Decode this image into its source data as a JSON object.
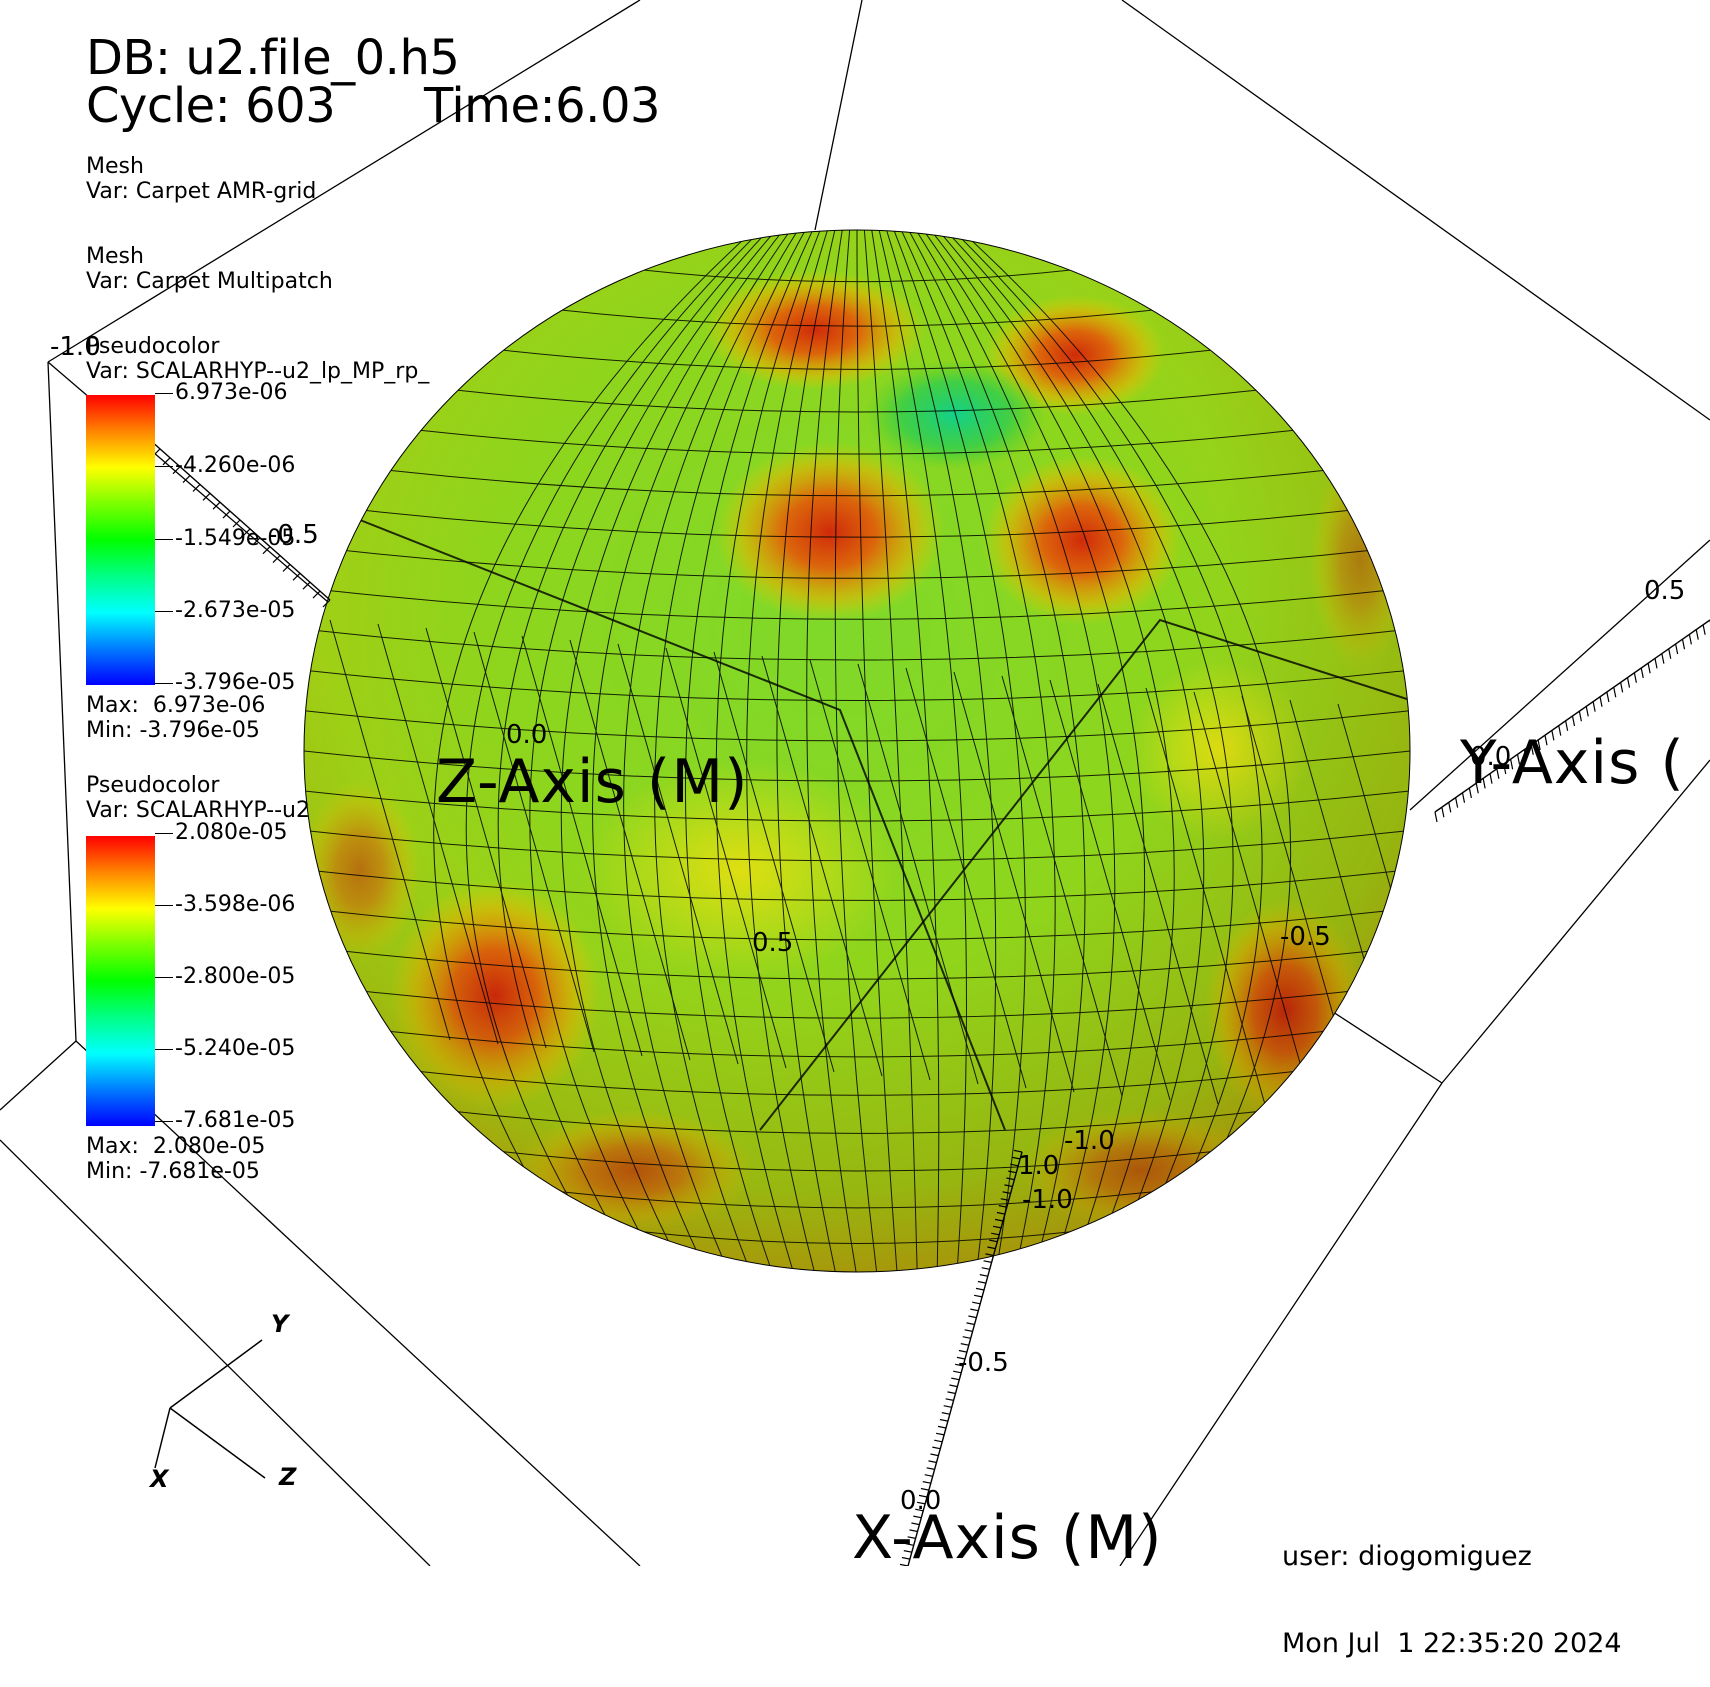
{
  "header": {
    "db_line": "DB: u2.file_0.h5",
    "cycle_label": "Cycle: 603",
    "time_label": "Time:6.03"
  },
  "plots": [
    {
      "type_label": "Mesh",
      "var_label": "Var: Carpet AMR-grid"
    },
    {
      "type_label": "Mesh",
      "var_label": "Var: Carpet Multipatch"
    }
  ],
  "legends": [
    {
      "type_label": "Pseudocolor",
      "var_label": "Var: SCALARHYP--u2_lp_MP_rp_",
      "ticks": [
        "6.973e-06",
        "-4.260e-06",
        "-1.549e-05",
        "-2.673e-05",
        "-3.796e-05"
      ],
      "max_label": "Max:  6.973e-06",
      "min_label": "Min: -3.796e-05"
    },
    {
      "type_label": "Pseudocolor",
      "var_label": "Var: SCALARHYP--u2",
      "ticks": [
        "2.080e-05",
        "-3.598e-06",
        "-2.800e-05",
        "-5.240e-05",
        "-7.681e-05"
      ],
      "max_label": "Max:  2.080e-05",
      "min_label": "Min: -7.681e-05"
    }
  ],
  "axes": {
    "x_title": "X-Axis (M)",
    "y_title": "Y-Axis (",
    "z_title": "Z-Axis (M)",
    "x_ticks": [
      "0.0",
      "-0.5",
      "-1.0"
    ],
    "y_ticks": [
      "0.5",
      "0.0",
      "-0.5",
      "-1.0"
    ],
    "z_ticks": [
      "-1.0",
      "-0.5",
      "0.0",
      "0.5",
      "1.0"
    ]
  },
  "triad": {
    "x": "X",
    "y": "Y",
    "z": "Z"
  },
  "footer": {
    "user_line": "user: diogomiguez",
    "date_line": "Mon Jul  1 22:35:20 2024"
  },
  "colors": {
    "hot": "#d23a10",
    "warm": "#e8b100",
    "mid": "#5fc51a",
    "cool": "#1ec96a",
    "mesh": "#000000"
  }
}
